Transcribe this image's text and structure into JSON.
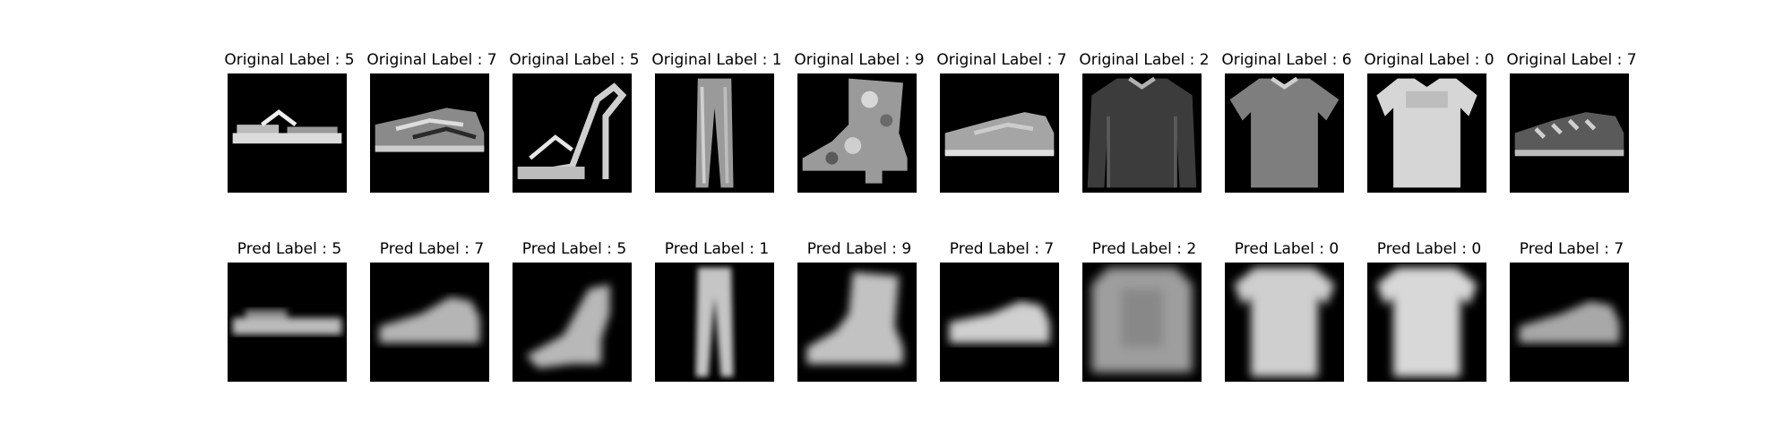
{
  "rows": [
    {
      "row": "original",
      "prefix": "Original Label : ",
      "labels": [
        "5",
        "7",
        "5",
        "1",
        "9",
        "7",
        "2",
        "6",
        "0",
        "7"
      ]
    },
    {
      "row": "pred",
      "prefix": "Pred Label : ",
      "labels": [
        "5",
        "7",
        "5",
        "1",
        "9",
        "7",
        "2",
        "0",
        "0",
        "7"
      ]
    }
  ],
  "titles": {
    "original": [
      "Original Label : 5",
      "Original Label : 7",
      "Original Label : 5",
      "Original Label : 1",
      "Original Label : 9",
      "Original Label : 7",
      "Original Label : 2",
      "Original Label : 6",
      "Original Label : 0",
      "Original Label : 7"
    ],
    "pred": [
      "Pred Label : 5",
      "Pred Label : 7",
      "Pred Label : 5",
      "Pred Label : 1",
      "Pred Label : 9",
      "Pred Label : 7",
      "Pred Label : 2",
      "Pred Label : 0",
      "Pred Label : 0",
      "Pred Label : 7"
    ]
  },
  "items": [
    "sandal",
    "sneaker",
    "sandal",
    "trouser",
    "ankle-boot",
    "sneaker",
    "pullover",
    "shirt",
    "t-shirt",
    "sneaker"
  ],
  "colors": {
    "background": "#000000",
    "figure": "#ffffff",
    "text": "#000000"
  }
}
